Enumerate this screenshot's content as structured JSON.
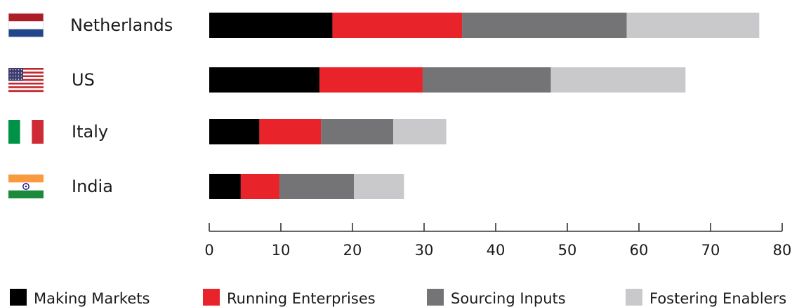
{
  "chart_data": {
    "type": "bar",
    "orientation": "horizontal",
    "stacked": true,
    "categories": [
      "Netherlands",
      "US",
      "Italy",
      "India"
    ],
    "series": [
      {
        "name": "Making Markets",
        "color": "#000000",
        "values": [
          17.2,
          15.4,
          7.0,
          4.4
        ]
      },
      {
        "name": "Running Enterprises",
        "color": "#e8232a",
        "values": [
          18.1,
          14.4,
          8.6,
          5.4
        ]
      },
      {
        "name": "Sourcing Inputs",
        "color": "#747476",
        "values": [
          23.0,
          17.9,
          10.1,
          10.4
        ]
      },
      {
        "name": "Fostering Enablers",
        "color": "#c9c9cb",
        "values": [
          18.5,
          18.8,
          7.4,
          7.0
        ]
      }
    ],
    "xlim": [
      0,
      80
    ],
    "xticks": [
      0,
      10,
      20,
      30,
      40,
      50,
      60,
      70,
      80
    ],
    "flags": [
      {
        "country": "Netherlands",
        "icon": "netherlands-flag-icon"
      },
      {
        "country": "US",
        "icon": "us-flag-icon"
      },
      {
        "country": "Italy",
        "icon": "italy-flag-icon"
      },
      {
        "country": "India",
        "icon": "india-flag-icon"
      }
    ],
    "legend_position": "bottom",
    "grid": false
  }
}
